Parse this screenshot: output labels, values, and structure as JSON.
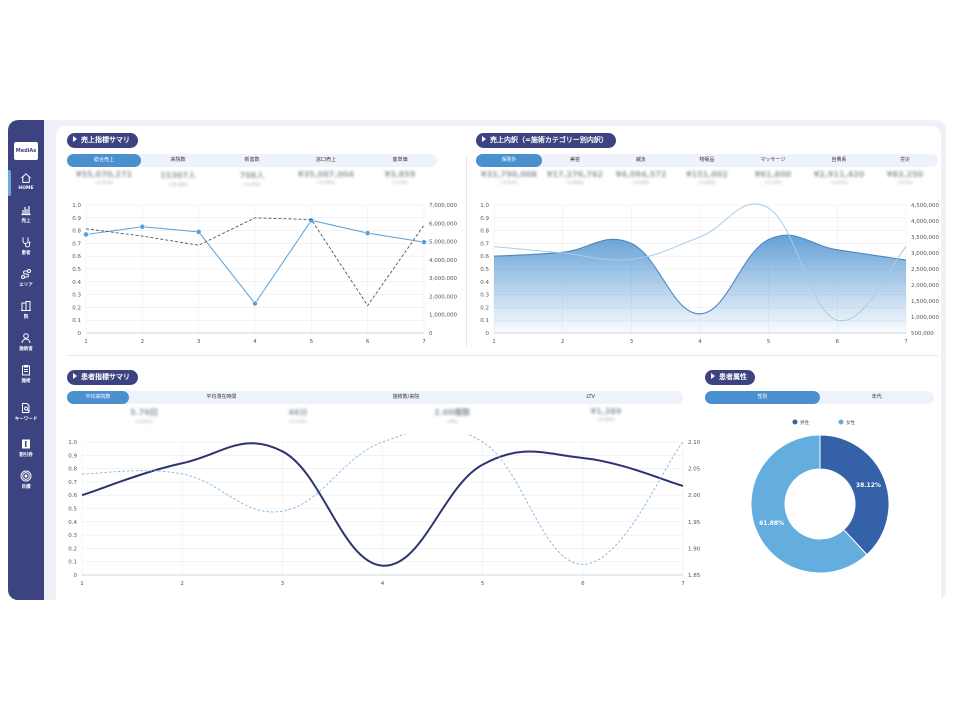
{
  "sidebar": {
    "logo": "MediAs",
    "items": [
      {
        "label": "HOME",
        "icon": "home-icon",
        "active": true
      },
      {
        "label": "売上",
        "icon": "bar-chart-icon"
      },
      {
        "label": "患者",
        "icon": "stethoscope-icon"
      },
      {
        "label": "エリア",
        "icon": "map-route-icon"
      },
      {
        "label": "院",
        "icon": "building-icon"
      },
      {
        "label": "施術者",
        "icon": "person-icon"
      },
      {
        "label": "施術",
        "icon": "clipboard-icon"
      },
      {
        "label": "キーワード",
        "icon": "document-search-icon"
      },
      {
        "label": "割引券",
        "icon": "ticket-icon"
      },
      {
        "label": "目標",
        "icon": "target-icon"
      }
    ]
  },
  "sales_summary": {
    "title": "売上指標サマリ",
    "tabs": [
      "総合売上",
      "来院数",
      "新患数",
      "窓口売上",
      "客単価"
    ],
    "active_tab": 0,
    "kpis": [
      {
        "value": "¥55,070,272",
        "sub": "(-0.01%)"
      },
      {
        "value": "15307人",
        "sub": "(-10.58%)"
      },
      {
        "value": "708人",
        "sub": "(-0.29%)"
      },
      {
        "value": "¥35,087,004",
        "sub": "(-0.04%)"
      },
      {
        "value": "¥3,859",
        "sub": "(-1.2%)"
      }
    ]
  },
  "sales_breakdown": {
    "title": "売上内訳（=施術カテゴリー別内訳）",
    "tabs": [
      "保険外",
      "美容",
      "鍼灸",
      "物販品",
      "マッサージ",
      "自費系",
      "労災"
    ],
    "active_tab": 0,
    "kpis": [
      {
        "value": "¥32,790,008",
        "sub": "(-0.01%)"
      },
      {
        "value": "¥17,276,762",
        "sub": "(-0.88%)"
      },
      {
        "value": "¥4,094,572",
        "sub": "(-0.95%)"
      },
      {
        "value": "¥151,002",
        "sub": "(-0.08%)"
      },
      {
        "value": "¥61,800",
        "sub": "(-0.12%)"
      },
      {
        "value": "¥2,911,420",
        "sub": "(-0.03%)"
      },
      {
        "value": "¥83,250",
        "sub": "(-0.5%)"
      }
    ]
  },
  "patient_summary": {
    "title": "患者指標サマリ",
    "tabs": [
      "平均来院数",
      "平均滞在時間",
      "施術数/来院",
      "LTV"
    ],
    "active_tab": 0,
    "kpis": [
      {
        "value": "5.76回",
        "sub": "(-0.02%)"
      },
      {
        "value": "46分",
        "sub": "(-0.15%)"
      },
      {
        "value": "2.00種類",
        "sub": "(-0%)"
      },
      {
        "value": "¥1,389",
        "sub": "(-0.28%)"
      }
    ]
  },
  "patient_attributes": {
    "title": "患者属性",
    "tabs": [
      "性別",
      "年代"
    ],
    "active_tab": 0
  },
  "colors": {
    "navy": "#3d4380",
    "accent_blue": "#4a90cf",
    "light_blue": "#6aaee0",
    "dark_line": "#2e3470",
    "donut_male": "#3561a8",
    "donut_female": "#63aede"
  },
  "chart_data": [
    {
      "type": "line",
      "x": [
        1,
        2,
        3,
        4,
        5,
        6,
        7
      ],
      "ylim_left": [
        0,
        1.0
      ],
      "ylim_right": [
        0,
        7000000
      ],
      "left_ticks": [
        "0",
        "0.1",
        "0.2",
        "0.3",
        "0.4",
        "0.5",
        "0.6",
        "0.7",
        "0.8",
        "0.9",
        "1.0"
      ],
      "right_ticks": [
        "0",
        "1,000,000",
        "2,000,000",
        "3,000,000",
        "4,000,000",
        "5,000,000",
        "6,000,000",
        "7,000,000"
      ],
      "series": [
        {
          "axis": "left",
          "style": "solid",
          "values": [
            0.77,
            0.83,
            0.79,
            0.23,
            0.88,
            0.78,
            0.71
          ]
        },
        {
          "axis": "right",
          "style": "dashed",
          "values": [
            5700000,
            5300000,
            4800000,
            6300000,
            6200000,
            1500000,
            5900000
          ]
        }
      ],
      "grid": true
    },
    {
      "type": "area",
      "x": [
        1,
        2,
        3,
        4,
        5,
        6,
        7
      ],
      "ylim_left": [
        0,
        1.0
      ],
      "ylim_right": [
        500000,
        4500000
      ],
      "left_ticks": [
        "0",
        "0.1",
        "0.2",
        "0.3",
        "0.4",
        "0.5",
        "0.6",
        "0.7",
        "0.8",
        "0.9",
        "1.0"
      ],
      "right_ticks": [
        "500,000",
        "1,000,000",
        "1,500,000",
        "2,000,000",
        "2,500,000",
        "3,000,000",
        "3,500,000",
        "4,000,000",
        "4,500,000"
      ],
      "series": [
        {
          "axis": "left",
          "style": "area",
          "values": [
            0.6,
            0.63,
            0.7,
            0.15,
            0.73,
            0.65,
            0.57
          ]
        },
        {
          "axis": "right",
          "style": "light",
          "values": [
            3200000,
            3000000,
            2800000,
            3500000,
            4400000,
            900000,
            3200000
          ]
        }
      ],
      "grid": true
    },
    {
      "type": "line",
      "x": [
        1,
        2,
        3,
        4,
        5,
        6,
        7
      ],
      "ylim_left": [
        0,
        1.0
      ],
      "ylim_right": [
        1.85,
        2.1
      ],
      "left_ticks": [
        "0",
        "0.1",
        "0.2",
        "0.3",
        "0.4",
        "0.5",
        "0.6",
        "0.7",
        "0.8",
        "0.9",
        "1.0"
      ],
      "right_ticks": [
        "1.85",
        "1.90",
        "1.95",
        "2.00",
        "2.05",
        "2.10"
      ],
      "series": [
        {
          "axis": "left",
          "style": "thick",
          "values": [
            0.6,
            0.84,
            0.93,
            0.07,
            0.83,
            0.88,
            0.67
          ]
        },
        {
          "axis": "right",
          "style": "dashed-light",
          "values": [
            2.04,
            2.04,
            1.97,
            2.1,
            2.1,
            1.87,
            2.1
          ]
        }
      ],
      "grid": true
    },
    {
      "type": "pie",
      "legend": [
        "男性",
        "女性"
      ],
      "values": [
        38.12,
        61.88
      ],
      "labels": [
        "38.12%",
        "61.88%"
      ],
      "legend_position": "top"
    }
  ]
}
